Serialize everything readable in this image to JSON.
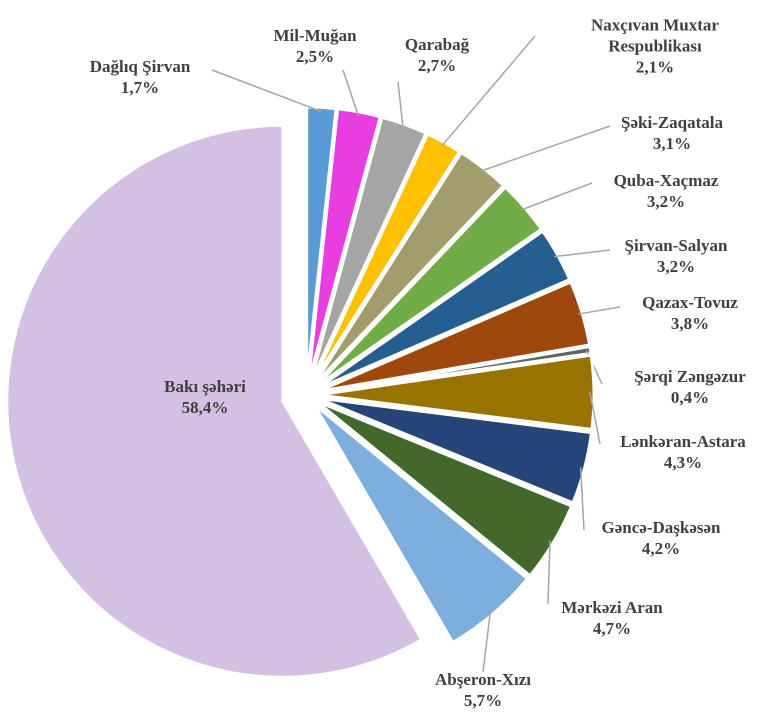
{
  "chart_data": {
    "type": "pie",
    "categories": [
      "Dağlıq Şirvan",
      "Mil-Muğan",
      "Qarabağ",
      "Naxçıvan Muxtar Respublikası",
      "Şəki-Zaqatala",
      "Quba-Xaçmaz",
      "Şirvan-Salyan",
      "Qazax-Tovuz",
      "Şərqi Zəngəzur",
      "Lənkəran-Astara",
      "Gəncə-Daşkəsən",
      "Mərkəzi Aran",
      "Abşeron-Xızı",
      "Bakı şəhəri"
    ],
    "values": [
      1.7,
      2.5,
      2.7,
      2.1,
      3.1,
      3.2,
      3.2,
      3.8,
      0.4,
      4.3,
      4.2,
      4.7,
      5.7,
      58.4
    ],
    "value_labels": [
      "1,7%",
      "2,5%",
      "2,7%",
      "2,1%",
      "3,1%",
      "3,2%",
      "3,2%",
      "3,8%",
      "0,4%",
      "4,3%",
      "4,2%",
      "4,7%",
      "5,7%",
      "58,4%"
    ],
    "colors": [
      "#5b9bd5",
      "#e83ee0",
      "#a5a5a5",
      "#ffc000",
      "#a39c6c",
      "#70ad47",
      "#255e91",
      "#9e480e",
      "#636363",
      "#997300",
      "#264478",
      "#43682b",
      "#7cafdd",
      "#d4c0e3"
    ]
  }
}
